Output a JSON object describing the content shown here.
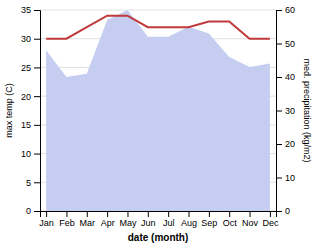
{
  "chart_data": {
    "type": "line",
    "xlabel": "date (month)",
    "ylabel": "max temp (C)",
    "y2label": "med. precipitation (kg/m2)",
    "categories": [
      "Jan",
      "Feb",
      "Mar",
      "Apr",
      "May",
      "Jun",
      "Jul",
      "Aug",
      "Sep",
      "Oct",
      "Nov",
      "Dec"
    ],
    "series": [
      {
        "type": "area",
        "axis": "y2",
        "color": "#c5cef0",
        "values": [
          48,
          40,
          41,
          57,
          60,
          52,
          52,
          55,
          53,
          46,
          43,
          44
        ]
      },
      {
        "type": "line",
        "color": "#c0393b",
        "values": [
          30,
          30,
          32,
          34,
          34,
          32,
          32,
          32,
          33,
          33,
          30,
          30
        ]
      }
    ],
    "ylim": [
      0,
      35
    ],
    "yticks": [
      0,
      5,
      10,
      15,
      20,
      25,
      30,
      35
    ],
    "y2lim": [
      0,
      60
    ],
    "y2ticks": [
      0,
      10,
      20,
      30,
      40,
      50,
      60
    ],
    "grid": true
  }
}
